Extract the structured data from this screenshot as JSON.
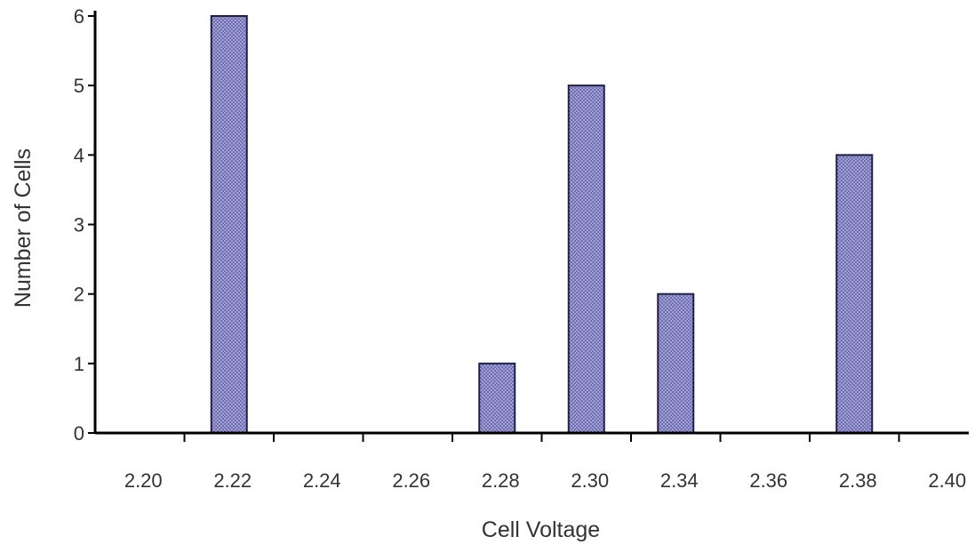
{
  "chart_data": {
    "type": "bar",
    "xlabel": "Cell Voltage",
    "ylabel": "Number of Cells",
    "categories": [
      "2.20",
      "2.22",
      "2.24",
      "2.26",
      "2.28",
      "2.30",
      "2.34",
      "2.36",
      "2.38",
      "2.40"
    ],
    "values": [
      0,
      6,
      0,
      0,
      1,
      5,
      2,
      0,
      4,
      0
    ],
    "ylim": [
      0,
      6
    ],
    "yticks": [
      "0",
      "1",
      "2",
      "3",
      "4",
      "5",
      "6"
    ],
    "bar_color": "#9090c8",
    "grid": false,
    "legend": "none"
  }
}
